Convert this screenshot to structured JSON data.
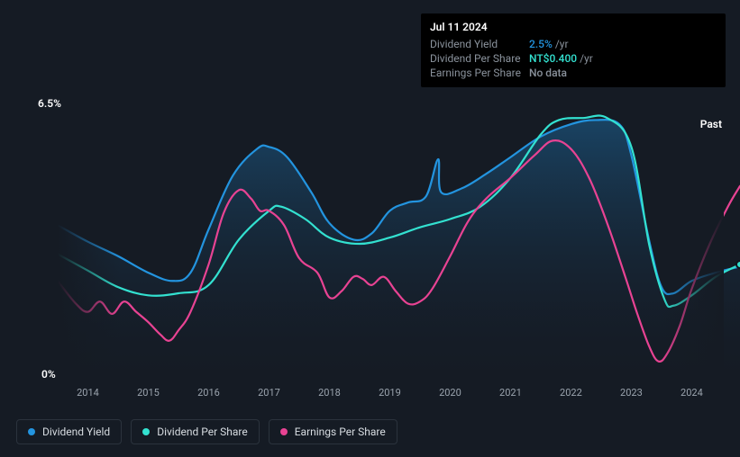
{
  "chart": {
    "type": "line",
    "background_color": "#151b24",
    "plot_fill_gradient_top": "#163a57",
    "plot_fill_gradient_bottom": "#151b26",
    "y_max_label": "6.5%",
    "y_min_label": "0%",
    "ylim": [
      0,
      6.5
    ],
    "x_ticks": [
      "2014",
      "2015",
      "2016",
      "2017",
      "2018",
      "2019",
      "2020",
      "2021",
      "2022",
      "2023",
      "2024"
    ],
    "x_domain": [
      2013.5,
      2024.8
    ],
    "past_label": "Past",
    "axis_tick_color": "#9aa3ad",
    "axis_label_fontsize": 11,
    "series": {
      "dividend_yield": {
        "label": "Dividend Yield",
        "color": "#2394df",
        "width": 2.2,
        "fill": true,
        "points": [
          [
            2013.5,
            3.7
          ],
          [
            2014.0,
            3.3
          ],
          [
            2014.5,
            2.95
          ],
          [
            2015.0,
            2.55
          ],
          [
            2015.4,
            2.35
          ],
          [
            2015.7,
            2.55
          ],
          [
            2016.0,
            3.6
          ],
          [
            2016.4,
            4.9
          ],
          [
            2016.8,
            5.55
          ],
          [
            2017.0,
            5.6
          ],
          [
            2017.3,
            5.35
          ],
          [
            2017.7,
            4.5
          ],
          [
            2018.0,
            3.75
          ],
          [
            2018.4,
            3.35
          ],
          [
            2018.7,
            3.5
          ],
          [
            2019.0,
            4.05
          ],
          [
            2019.3,
            4.25
          ],
          [
            2019.6,
            4.4
          ],
          [
            2019.8,
            5.3
          ],
          [
            2019.85,
            4.5
          ],
          [
            2020.2,
            4.6
          ],
          [
            2020.6,
            4.95
          ],
          [
            2021.0,
            5.35
          ],
          [
            2021.5,
            5.85
          ],
          [
            2022.0,
            6.15
          ],
          [
            2022.4,
            6.25
          ],
          [
            2022.8,
            6.15
          ],
          [
            2023.0,
            5.4
          ],
          [
            2023.3,
            3.3
          ],
          [
            2023.5,
            2.2
          ],
          [
            2023.7,
            2.05
          ],
          [
            2024.0,
            2.35
          ],
          [
            2024.4,
            2.55
          ],
          [
            2024.8,
            2.7
          ]
        ]
      },
      "dividend_per_share": {
        "label": "Dividend Per Share",
        "color": "#33e1d0",
        "width": 2.2,
        "points": [
          [
            2013.5,
            3.0
          ],
          [
            2014.0,
            2.6
          ],
          [
            2014.5,
            2.2
          ],
          [
            2015.0,
            2.0
          ],
          [
            2015.5,
            2.05
          ],
          [
            2016.0,
            2.25
          ],
          [
            2016.5,
            3.35
          ],
          [
            2017.0,
            4.05
          ],
          [
            2017.2,
            4.15
          ],
          [
            2017.6,
            3.85
          ],
          [
            2018.0,
            3.4
          ],
          [
            2018.5,
            3.25
          ],
          [
            2019.0,
            3.4
          ],
          [
            2019.5,
            3.65
          ],
          [
            2020.0,
            3.85
          ],
          [
            2020.5,
            4.15
          ],
          [
            2021.0,
            4.85
          ],
          [
            2021.5,
            5.9
          ],
          [
            2021.8,
            6.25
          ],
          [
            2022.2,
            6.3
          ],
          [
            2022.6,
            6.3
          ],
          [
            2023.0,
            5.6
          ],
          [
            2023.3,
            3.2
          ],
          [
            2023.55,
            1.9
          ],
          [
            2023.7,
            1.75
          ],
          [
            2024.0,
            2.0
          ],
          [
            2024.4,
            2.45
          ],
          [
            2024.8,
            2.75
          ]
        ]
      },
      "earnings_per_share": {
        "label": "Earnings Per Share",
        "color": "#e84393",
        "width": 2.2,
        "points": [
          [
            2013.5,
            2.35
          ],
          [
            2013.8,
            1.8
          ],
          [
            2014.0,
            1.6
          ],
          [
            2014.2,
            1.85
          ],
          [
            2014.4,
            1.55
          ],
          [
            2014.6,
            1.85
          ],
          [
            2014.8,
            1.6
          ],
          [
            2015.0,
            1.35
          ],
          [
            2015.2,
            1.05
          ],
          [
            2015.35,
            0.9
          ],
          [
            2015.5,
            1.15
          ],
          [
            2015.7,
            1.6
          ],
          [
            2016.0,
            2.75
          ],
          [
            2016.25,
            4.0
          ],
          [
            2016.5,
            4.55
          ],
          [
            2016.7,
            4.35
          ],
          [
            2016.85,
            4.05
          ],
          [
            2017.0,
            4.05
          ],
          [
            2017.25,
            3.7
          ],
          [
            2017.5,
            2.9
          ],
          [
            2017.8,
            2.55
          ],
          [
            2018.0,
            1.95
          ],
          [
            2018.2,
            2.1
          ],
          [
            2018.4,
            2.45
          ],
          [
            2018.55,
            2.4
          ],
          [
            2018.7,
            2.25
          ],
          [
            2018.9,
            2.45
          ],
          [
            2019.1,
            2.1
          ],
          [
            2019.3,
            1.8
          ],
          [
            2019.5,
            1.85
          ],
          [
            2019.7,
            2.15
          ],
          [
            2020.0,
            2.95
          ],
          [
            2020.3,
            3.8
          ],
          [
            2020.6,
            4.35
          ],
          [
            2021.0,
            4.85
          ],
          [
            2021.4,
            5.4
          ],
          [
            2021.7,
            5.75
          ],
          [
            2022.0,
            5.55
          ],
          [
            2022.3,
            4.85
          ],
          [
            2022.6,
            3.75
          ],
          [
            2022.9,
            2.45
          ],
          [
            2023.1,
            1.55
          ],
          [
            2023.3,
            0.75
          ],
          [
            2023.45,
            0.4
          ],
          [
            2023.6,
            0.6
          ],
          [
            2023.8,
            1.25
          ],
          [
            2024.0,
            2.15
          ],
          [
            2024.3,
            3.25
          ],
          [
            2024.6,
            4.15
          ],
          [
            2024.8,
            4.65
          ]
        ]
      }
    }
  },
  "tooltip": {
    "date": "Jul 11 2024",
    "rows": [
      {
        "label": "Dividend Yield",
        "value": "2.5%",
        "unit": "/yr",
        "value_color": "#2394df"
      },
      {
        "label": "Dividend Per Share",
        "value": "NT$0.400",
        "unit": "/yr",
        "value_color": "#33e1d0"
      },
      {
        "label": "Earnings Per Share",
        "value": "No data",
        "unit": "",
        "value_color": "#8a929c"
      }
    ]
  },
  "legend": {
    "items": [
      {
        "key": "dividend_yield",
        "label": "Dividend Yield",
        "color": "#2394df"
      },
      {
        "key": "dividend_per_share",
        "label": "Dividend Per Share",
        "color": "#33e1d0"
      },
      {
        "key": "earnings_per_share",
        "label": "Earnings Per Share",
        "color": "#e84393"
      }
    ]
  },
  "marker": {
    "x": 2024.8,
    "series": "dividend_per_share"
  }
}
